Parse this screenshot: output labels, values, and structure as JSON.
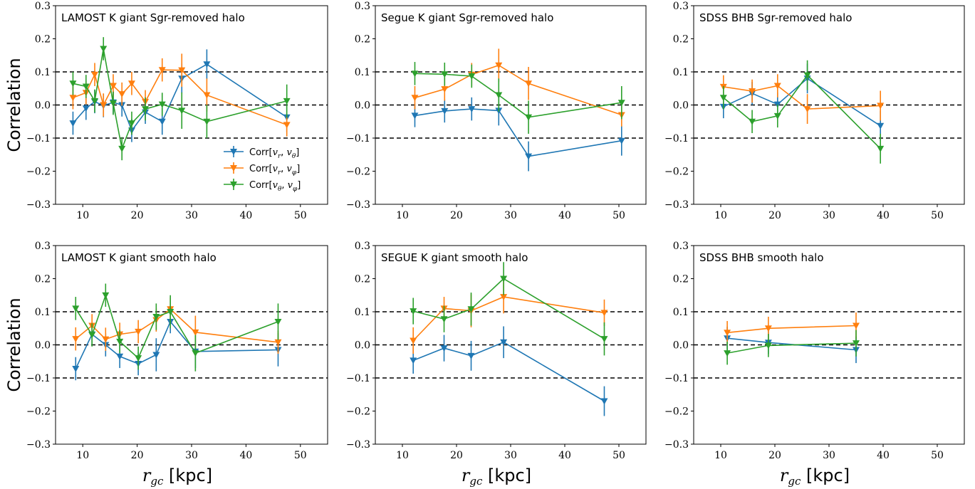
{
  "colors": {
    "blue": "#1f77b4",
    "orange": "#ff7f0e",
    "green": "#2ca02c"
  },
  "legend_labels": [
    {
      "prefix": "Corr",
      "a": "v",
      "a_sub": "r",
      "b": "v",
      "b_sub": "θ"
    },
    {
      "prefix": "Corr",
      "a": "v",
      "a_sub": "r",
      "b": "v",
      "b_sub": "φ"
    },
    {
      "prefix": "Corr",
      "a": "v",
      "a_sub": "θ",
      "b": "v",
      "b_sub": "φ"
    }
  ],
  "y_axis_label": "Correlation",
  "x_axis_label": {
    "symbol": "r",
    "sub": "gc",
    "unit": " [kpc]"
  },
  "chart_data": [
    {
      "type": "line",
      "title": "LAMOST K giant Sgr-removed halo",
      "xlim": [
        5,
        55
      ],
      "ylim": [
        -0.3,
        0.3
      ],
      "xticks": [
        10,
        20,
        30,
        40,
        50
      ],
      "yticks": [
        -0.3,
        -0.2,
        -0.1,
        0.0,
        0.1,
        0.2,
        0.3
      ],
      "xtick_labels": [
        "10",
        "20",
        "30",
        "40",
        "50"
      ],
      "ytick_labels": [
        "−0.3",
        "−0.2",
        "−0.1",
        "0.0",
        "0.1",
        "0.2",
        "0.3"
      ],
      "hlines": [
        -0.1,
        0.0,
        0.1
      ],
      "legend": true,
      "legend_loc": "lower-right",
      "series": [
        {
          "name": "Corr[v_r, v_θ]",
          "color": "blue",
          "x": [
            8.2,
            10.6,
            12.2,
            13.8,
            15.6,
            17.2,
            19.0,
            21.5,
            24.6,
            28.2,
            32.8,
            47.5
          ],
          "y": [
            -0.055,
            -0.01,
            0.01,
            -0.002,
            0.008,
            0.0,
            -0.077,
            -0.022,
            -0.05,
            0.08,
            0.123,
            -0.037
          ],
          "err": [
            0.035,
            0.035,
            0.035,
            0.035,
            0.035,
            0.035,
            0.035,
            0.035,
            0.04,
            0.045,
            0.045,
            0.045
          ]
        },
        {
          "name": "Corr[v_r, v_φ]",
          "color": "orange",
          "x": [
            8.2,
            10.6,
            12.2,
            13.8,
            15.6,
            17.2,
            19.0,
            21.5,
            24.6,
            28.2,
            32.8,
            47.5
          ],
          "y": [
            0.022,
            0.037,
            0.092,
            0.0,
            0.058,
            0.033,
            0.065,
            0.01,
            0.106,
            0.105,
            0.03,
            -0.06
          ],
          "err": [
            0.035,
            0.035,
            0.035,
            0.035,
            0.035,
            0.035,
            0.035,
            0.035,
            0.035,
            0.05,
            0.05,
            0.035
          ]
        },
        {
          "name": "Corr[v_θ, v_φ]",
          "color": "green",
          "x": [
            8.2,
            10.6,
            12.2,
            13.8,
            15.6,
            17.2,
            19.0,
            21.5,
            24.6,
            28.2,
            32.8,
            47.5
          ],
          "y": [
            0.065,
            0.056,
            0.012,
            0.17,
            0.005,
            -0.132,
            -0.055,
            -0.012,
            0.002,
            -0.017,
            -0.05,
            0.012
          ],
          "err": [
            0.035,
            0.035,
            0.035,
            0.035,
            0.035,
            0.035,
            0.035,
            0.035,
            0.035,
            0.055,
            0.05,
            0.05
          ]
        }
      ]
    },
    {
      "type": "line",
      "title": "Segue K giant Sgr-removed halo",
      "xlim": [
        5,
        55
      ],
      "ylim": [
        -0.3,
        0.3
      ],
      "xticks": [
        10,
        20,
        30,
        40,
        50
      ],
      "yticks": [
        -0.3,
        -0.2,
        -0.1,
        0.0,
        0.1,
        0.2,
        0.3
      ],
      "xtick_labels": [
        "10",
        "20",
        "30",
        "40",
        "50"
      ],
      "ytick_labels": [
        "−0.3",
        "−0.2",
        "−0.1",
        "0.0",
        "0.1",
        "0.2",
        "0.3"
      ],
      "hlines": [
        -0.1,
        0.0,
        0.1
      ],
      "legend": false,
      "series": [
        {
          "name": "Corr[v_r, v_θ]",
          "color": "blue",
          "x": [
            12.3,
            17.8,
            22.8,
            27.8,
            33.3,
            50.5
          ],
          "y": [
            -0.032,
            -0.018,
            -0.012,
            -0.017,
            -0.155,
            -0.108
          ],
          "err": [
            0.035,
            0.035,
            0.035,
            0.045,
            0.045,
            0.045
          ]
        },
        {
          "name": "Corr[v_r, v_φ]",
          "color": "orange",
          "x": [
            12.3,
            17.8,
            22.8,
            27.8,
            33.3,
            50.5
          ],
          "y": [
            0.022,
            0.048,
            0.092,
            0.12,
            0.065,
            -0.03
          ],
          "err": [
            0.035,
            0.035,
            0.035,
            0.05,
            0.05,
            0.035
          ]
        },
        {
          "name": "Corr[v_θ, v_φ]",
          "color": "green",
          "x": [
            12.3,
            17.8,
            22.8,
            27.8,
            33.3,
            50.5
          ],
          "y": [
            0.095,
            0.093,
            0.087,
            0.03,
            -0.037,
            0.007
          ],
          "err": [
            0.035,
            0.035,
            0.035,
            0.05,
            0.05,
            0.05
          ]
        }
      ]
    },
    {
      "type": "line",
      "title": "SDSS BHB Sgr-removed halo",
      "xlim": [
        5,
        55
      ],
      "ylim": [
        -0.3,
        0.3
      ],
      "xticks": [
        10,
        20,
        30,
        40,
        50
      ],
      "yticks": [
        -0.3,
        -0.2,
        -0.1,
        0.0,
        0.1,
        0.2,
        0.3
      ],
      "xtick_labels": [
        "10",
        "20",
        "30",
        "40",
        "50"
      ],
      "ytick_labels": [
        "−0.3",
        "−0.2",
        "−0.1",
        "0.0",
        "0.1",
        "0.2",
        "0.3"
      ],
      "hlines": [
        -0.1,
        0.0,
        0.1
      ],
      "legend": false,
      "series": [
        {
          "name": "Corr[v_r, v_θ]",
          "color": "blue",
          "x": [
            10.5,
            15.8,
            20.5,
            26.0,
            39.5
          ],
          "y": [
            -0.005,
            0.035,
            0.002,
            0.08,
            -0.063
          ],
          "err": [
            0.035,
            0.035,
            0.035,
            0.045,
            0.045
          ]
        },
        {
          "name": "Corr[v_r, v_φ]",
          "color": "orange",
          "x": [
            10.5,
            15.8,
            20.5,
            26.0,
            39.5
          ],
          "y": [
            0.055,
            0.042,
            0.058,
            -0.012,
            -0.002
          ],
          "err": [
            0.035,
            0.035,
            0.035,
            0.045,
            0.045
          ]
        },
        {
          "name": "Corr[v_θ, v_φ]",
          "color": "green",
          "x": [
            10.5,
            15.8,
            20.5,
            26.0,
            39.5
          ],
          "y": [
            0.022,
            -0.05,
            -0.033,
            0.09,
            -0.132
          ],
          "err": [
            0.035,
            0.035,
            0.035,
            0.045,
            0.045
          ]
        }
      ]
    },
    {
      "type": "line",
      "title": "LAMOST K giant smooth halo",
      "xlim": [
        5,
        55
      ],
      "ylim": [
        -0.3,
        0.3
      ],
      "xticks": [
        10,
        20,
        30,
        40,
        50
      ],
      "yticks": [
        -0.3,
        -0.2,
        -0.1,
        0.0,
        0.1,
        0.2,
        0.3
      ],
      "xtick_labels": [
        "10",
        "20",
        "30",
        "40",
        "50"
      ],
      "ytick_labels": [
        "−0.3",
        "−0.2",
        "−0.1",
        "0.0",
        "0.1",
        "0.2",
        "0.3"
      ],
      "hlines": [
        -0.1,
        0.0,
        0.1
      ],
      "legend": false,
      "series": [
        {
          "name": "Corr[v_r, v_θ]",
          "color": "blue",
          "x": [
            8.7,
            11.7,
            14.2,
            16.8,
            20.2,
            23.5,
            26.1,
            30.7,
            45.9
          ],
          "y": [
            -0.072,
            0.032,
            0.0,
            -0.035,
            -0.057,
            -0.03,
            0.07,
            -0.02,
            -0.015
          ],
          "err": [
            0.035,
            0.035,
            0.035,
            0.035,
            0.035,
            0.05,
            0.035,
            0.05,
            0.05
          ]
        },
        {
          "name": "Corr[v_r, v_φ]",
          "color": "orange",
          "x": [
            8.7,
            11.7,
            14.2,
            16.8,
            20.2,
            23.5,
            26.1,
            30.7,
            45.9
          ],
          "y": [
            0.018,
            0.058,
            0.017,
            0.032,
            0.04,
            0.075,
            0.108,
            0.038,
            0.008
          ],
          "err": [
            0.035,
            0.035,
            0.035,
            0.035,
            0.035,
            0.035,
            0.035,
            0.05,
            0.035
          ]
        },
        {
          "name": "Corr[v_θ, v_φ]",
          "color": "green",
          "x": [
            8.7,
            11.7,
            14.2,
            16.8,
            20.2,
            23.5,
            26.1,
            30.7,
            45.9
          ],
          "y": [
            0.11,
            0.03,
            0.15,
            0.01,
            -0.04,
            0.085,
            0.1,
            -0.025,
            0.07
          ],
          "err": [
            0.035,
            0.035,
            0.035,
            0.035,
            0.035,
            0.04,
            0.05,
            0.055,
            0.055
          ]
        }
      ]
    },
    {
      "type": "line",
      "title": "SEGUE K giant smooth halo",
      "xlim": [
        5,
        55
      ],
      "ylim": [
        -0.3,
        0.3
      ],
      "xticks": [
        10,
        20,
        30,
        40,
        50
      ],
      "yticks": [
        -0.3,
        -0.2,
        -0.1,
        0.0,
        0.1,
        0.2,
        0.3
      ],
      "xtick_labels": [
        "10",
        "20",
        "30",
        "40",
        "50"
      ],
      "ytick_labels": [
        "−0.3",
        "−0.2",
        "−0.1",
        "0.0",
        "0.1",
        "0.2",
        "0.3"
      ],
      "hlines": [
        -0.1,
        0.0,
        0.1
      ],
      "legend": false,
      "series": [
        {
          "name": "Corr[v_r, v_θ]",
          "color": "blue",
          "x": [
            12.0,
            17.7,
            22.7,
            28.7,
            47.3
          ],
          "y": [
            -0.047,
            -0.01,
            -0.033,
            0.008,
            -0.17
          ],
          "err": [
            0.04,
            0.04,
            0.045,
            0.048,
            0.045
          ]
        },
        {
          "name": "Corr[v_r, v_φ]",
          "color": "orange",
          "x": [
            12.0,
            17.7,
            22.7,
            28.7,
            47.3
          ],
          "y": [
            0.013,
            0.11,
            0.103,
            0.145,
            0.097
          ],
          "err": [
            0.04,
            0.035,
            0.05,
            0.05,
            0.04
          ]
        },
        {
          "name": "Corr[v_θ, v_φ]",
          "color": "green",
          "x": [
            12.0,
            17.7,
            22.7,
            28.7,
            47.3
          ],
          "y": [
            0.102,
            0.078,
            0.108,
            0.2,
            0.018
          ],
          "err": [
            0.04,
            0.04,
            0.05,
            0.05,
            0.05
          ]
        }
      ]
    },
    {
      "type": "line",
      "title": "SDSS BHB smooth halo",
      "xlim": [
        5,
        55
      ],
      "ylim": [
        -0.3,
        0.3
      ],
      "xticks": [
        10,
        20,
        30,
        40,
        50
      ],
      "yticks": [
        -0.3,
        -0.2,
        -0.1,
        0.0,
        0.1,
        0.2,
        0.3
      ],
      "xtick_labels": [
        "10",
        "20",
        "30",
        "40",
        "50"
      ],
      "ytick_labels": [
        "−0.3",
        "−0.2",
        "−0.1",
        "0.0",
        "0.1",
        "0.2",
        "0.3"
      ],
      "hlines": [
        -0.1,
        0.0,
        0.1
      ],
      "legend": false,
      "series": [
        {
          "name": "Corr[v_r, v_θ]",
          "color": "blue",
          "x": [
            11.2,
            18.8,
            35.0
          ],
          "y": [
            0.02,
            0.007,
            -0.015
          ],
          "err": [
            0.035,
            0.035,
            0.04
          ]
        },
        {
          "name": "Corr[v_r, v_φ]",
          "color": "orange",
          "x": [
            11.2,
            18.8,
            35.0
          ],
          "y": [
            0.037,
            0.05,
            0.058
          ],
          "err": [
            0.035,
            0.035,
            0.04
          ]
        },
        {
          "name": "Corr[v_θ, v_φ]",
          "color": "green",
          "x": [
            11.2,
            18.8,
            35.0
          ],
          "y": [
            -0.025,
            -0.002,
            0.005
          ],
          "err": [
            0.035,
            0.035,
            0.04
          ]
        }
      ]
    }
  ]
}
